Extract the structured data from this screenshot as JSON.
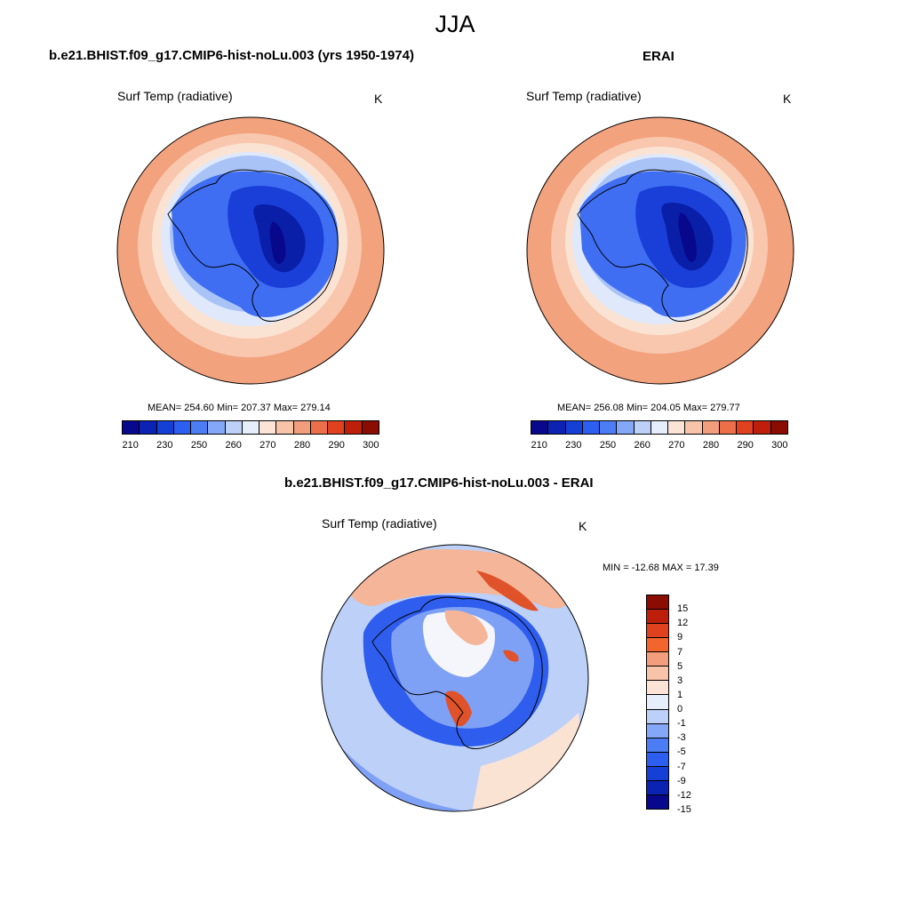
{
  "figure": {
    "title": "JJA"
  },
  "panels": [
    {
      "title": "b.e21.BHIST.f09_g17.CMIP6-hist-noLu.003 (yrs 1950-1974)",
      "variable": "Surf Temp (radiative)",
      "units": "K",
      "stats": "MEAN= 254.60  Min= 207.37  Max= 279.14",
      "mean": 254.6,
      "min": 207.37,
      "max": 279.14
    },
    {
      "title": "ERAI",
      "variable": "Surf Temp (radiative)",
      "units": "K",
      "stats": "MEAN= 256.08  Min= 204.05  Max= 279.77",
      "mean": 256.08,
      "min": 204.05,
      "max": 279.77
    },
    {
      "title": "b.e21.BHIST.f09_g17.CMIP6-hist-noLu.003 - ERAI",
      "variable": "Surf Temp (radiative)",
      "units": "K",
      "stats": "MIN = -12.68 MAX =  17.39",
      "min": -12.68,
      "max": 17.39
    }
  ],
  "colorbar_abs": {
    "colors": [
      "#08088c",
      "#0b22b3",
      "#1440d6",
      "#2c5ff0",
      "#4d7df5",
      "#84a7f7",
      "#bcd0f8",
      "#e6eefb",
      "#fbe4d6",
      "#f7c4aa",
      "#f29d7b",
      "#ec6f4a",
      "#e0411f",
      "#bd1f0a",
      "#8a0c03"
    ],
    "tick_labels": [
      "210",
      "230",
      "250",
      "260",
      "270",
      "280",
      "290",
      "300"
    ]
  },
  "colorbar_diff": {
    "colors": [
      "#08088c",
      "#0b22b3",
      "#1440d6",
      "#2c5ff0",
      "#4d7df5",
      "#84a7f7",
      "#bcd0f8",
      "#e6eefb",
      "#fbe4d6",
      "#f7c4aa",
      "#f29d7b",
      "#f2652d",
      "#e0411f",
      "#bd1f0a",
      "#8a0c03"
    ],
    "tick_labels": [
      "15",
      "12",
      "9",
      "7",
      "5",
      "3",
      "1",
      "0",
      "-1",
      "-3",
      "-5",
      "-7",
      "-9",
      "-12",
      "-15"
    ]
  },
  "palette": {
    "ocean_warm": "#f2a27d",
    "ocean_mild": "#f8c7ae",
    "ocean_cool": "#fbe3d4",
    "ice_pale": "#dfe9fb",
    "ice_light": "#a9c3f7",
    "land_mid": "#3f6ef2",
    "land_deep": "#1a3fd8",
    "land_core": "#0a1fa8",
    "land_min": "#08088c",
    "diff_neutral": "#f4f6fb",
    "diff_cool": "#7fa1f5",
    "diff_cold": "#2f5ded",
    "diff_warm": "#f5b598",
    "diff_hot": "#e0522a"
  }
}
